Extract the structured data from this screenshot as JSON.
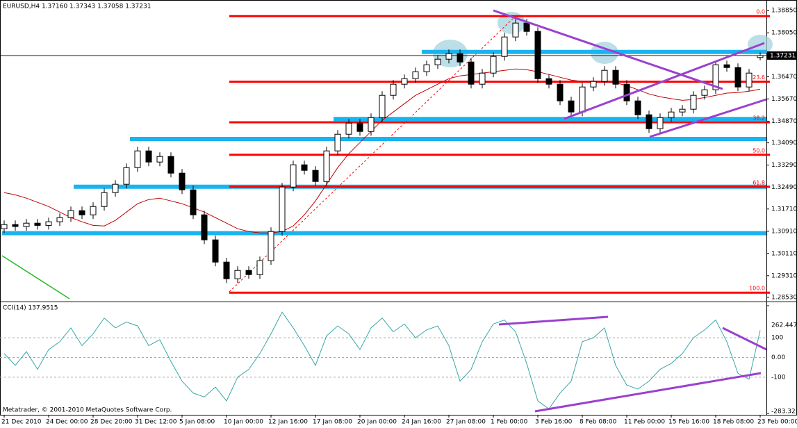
{
  "chart_data": [
    {
      "type": "candlestick",
      "title": "EURUSD,H4  1.37160 1.37343 1.37058 1.37231",
      "open": [
        1.31,
        1.3115,
        1.3108,
        1.312,
        1.3112,
        1.3125,
        1.314,
        1.3165,
        1.315,
        1.318,
        1.323,
        1.326,
        1.332,
        1.338,
        1.334,
        1.336,
        1.33,
        1.324,
        1.315,
        1.306,
        1.298,
        1.292,
        1.295,
        1.2935,
        1.2985,
        1.309,
        1.325,
        1.333,
        1.331,
        1.327,
        1.338,
        1.344,
        1.348,
        1.345,
        1.35,
        1.358,
        1.362,
        1.364,
        1.3665,
        1.369,
        1.371,
        1.373,
        1.37,
        1.362,
        1.366,
        1.372,
        1.379,
        1.384,
        1.381,
        1.364,
        1.362,
        1.356,
        1.352,
        1.361,
        1.363,
        1.367,
        1.362,
        1.356,
        1.351,
        1.346,
        1.35,
        1.352,
        1.353,
        1.358,
        1.36,
        1.369,
        1.368,
        1.361,
        1.3716
      ],
      "high": [
        1.313,
        1.313,
        1.3135,
        1.3135,
        1.314,
        1.3155,
        1.318,
        1.318,
        1.3195,
        1.3245,
        1.3275,
        1.3335,
        1.3395,
        1.3395,
        1.3375,
        1.3375,
        1.3315,
        1.3255,
        1.3165,
        1.3075,
        1.2995,
        1.2965,
        1.2965,
        1.3,
        1.3105,
        1.3265,
        1.3345,
        1.3345,
        1.3325,
        1.3395,
        1.3455,
        1.3495,
        1.3495,
        1.3515,
        1.3595,
        1.3635,
        1.3655,
        1.368,
        1.3705,
        1.3725,
        1.3745,
        1.3745,
        1.3715,
        1.3675,
        1.3735,
        1.3805,
        1.3855,
        1.3855,
        1.3825,
        1.3655,
        1.3635,
        1.3575,
        1.3625,
        1.3645,
        1.3685,
        1.3685,
        1.3635,
        1.3575,
        1.3525,
        1.3515,
        1.3535,
        1.3545,
        1.3595,
        1.3615,
        1.3705,
        1.3705,
        1.3695,
        1.3675,
        1.37343
      ],
      "low": [
        1.3085,
        1.3093,
        1.3093,
        1.3097,
        1.3097,
        1.311,
        1.3125,
        1.3135,
        1.3135,
        1.3165,
        1.3215,
        1.3245,
        1.3305,
        1.3325,
        1.3325,
        1.3285,
        1.3225,
        1.3135,
        1.3045,
        1.2965,
        1.2905,
        1.2905,
        1.292,
        1.292,
        1.297,
        1.3075,
        1.3235,
        1.3295,
        1.3255,
        1.3255,
        1.3365,
        1.3425,
        1.3435,
        1.3435,
        1.3485,
        1.3565,
        1.3605,
        1.3625,
        1.365,
        1.3675,
        1.3695,
        1.3685,
        1.3605,
        1.3605,
        1.3645,
        1.3705,
        1.3775,
        1.3795,
        1.3625,
        1.3605,
        1.3545,
        1.3505,
        1.3505,
        1.3595,
        1.3615,
        1.3605,
        1.3545,
        1.3495,
        1.3445,
        1.3445,
        1.3485,
        1.3505,
        1.3515,
        1.3565,
        1.3585,
        1.3665,
        1.3595,
        1.3595,
        1.37058
      ],
      "close": [
        1.3115,
        1.3108,
        1.312,
        1.3112,
        1.3125,
        1.314,
        1.3165,
        1.315,
        1.318,
        1.323,
        1.326,
        1.332,
        1.338,
        1.334,
        1.336,
        1.33,
        1.324,
        1.315,
        1.306,
        1.298,
        1.292,
        1.295,
        1.2935,
        1.2985,
        1.309,
        1.325,
        1.333,
        1.331,
        1.327,
        1.338,
        1.344,
        1.348,
        1.345,
        1.35,
        1.358,
        1.362,
        1.364,
        1.3665,
        1.369,
        1.371,
        1.373,
        1.37,
        1.362,
        1.366,
        1.372,
        1.379,
        1.384,
        1.381,
        1.364,
        1.362,
        1.356,
        1.352,
        1.361,
        1.363,
        1.367,
        1.362,
        1.356,
        1.351,
        1.346,
        1.35,
        1.352,
        1.353,
        1.358,
        1.36,
        1.369,
        1.368,
        1.361,
        1.366,
        1.37231
      ],
      "ma": {
        "color": "#c00000",
        "values": [
          1.323,
          1.3222,
          1.321,
          1.3195,
          1.318,
          1.316,
          1.314,
          1.3125,
          1.3112,
          1.311,
          1.313,
          1.316,
          1.319,
          1.3205,
          1.321,
          1.32,
          1.319,
          1.3175,
          1.316,
          1.314,
          1.312,
          1.31,
          1.309,
          1.3085,
          1.3085,
          1.309,
          1.311,
          1.315,
          1.32,
          1.326,
          1.332,
          1.337,
          1.341,
          1.345,
          1.349,
          1.352,
          1.355,
          1.358,
          1.36,
          1.362,
          1.364,
          1.365,
          1.3655,
          1.366,
          1.3665,
          1.367,
          1.3675,
          1.3672,
          1.3665,
          1.3655,
          1.3645,
          1.3635,
          1.363,
          1.3628,
          1.363,
          1.3625,
          1.3615,
          1.36,
          1.3585,
          1.3575,
          1.3568,
          1.3562,
          1.3565,
          1.3572,
          1.358,
          1.3588,
          1.359,
          1.3595,
          1.3602
        ]
      },
      "fib_color": "#ff0000",
      "fib_levels": [
        {
          "value": 1.3865,
          "label": "0.0"
        },
        {
          "value": 1.3629,
          "label": "23.6"
        },
        {
          "value": 1.3483,
          "label": "38.2"
        },
        {
          "value": 1.3366,
          "label": "50.0"
        },
        {
          "value": 1.3251,
          "label": "61.8"
        },
        {
          "value": 1.287,
          "label": "100.0"
        }
      ],
      "sr_color": "#19b4f0",
      "sr_levels": [
        1.3736,
        1.3495,
        1.3423,
        1.3251,
        1.3084
      ],
      "last_price": 1.37231,
      "ylim": [
        1.2843,
        1.3918
      ],
      "yticks": [
        {
          "value": 1.3885,
          "label": "1.38850"
        },
        {
          "value": 1.3805,
          "label": "1.38050"
        },
        {
          "value": 1.3647,
          "label": "1.36470"
        },
        {
          "value": 1.3567,
          "label": "1.35670"
        },
        {
          "value": 1.3487,
          "label": "1.34870"
        },
        {
          "value": 1.3409,
          "label": "1.34090"
        },
        {
          "value": 1.3329,
          "label": "1.33290"
        },
        {
          "value": 1.3249,
          "label": "1.32490"
        },
        {
          "value": 1.3171,
          "label": "1.31710"
        },
        {
          "value": 1.3091,
          "label": "1.30910"
        },
        {
          "value": 1.3011,
          "label": "1.30110"
        },
        {
          "value": 1.2931,
          "label": "1.29310"
        },
        {
          "value": 1.2853,
          "label": "1.28530"
        }
      ]
    },
    {
      "type": "line",
      "title": "CCI(14) 137.9515",
      "color": "#3aa6a6",
      "values": [
        20,
        -40,
        30,
        -60,
        40,
        80,
        150,
        60,
        120,
        200,
        150,
        180,
        160,
        60,
        90,
        -20,
        -120,
        -180,
        -200,
        -150,
        -220,
        -100,
        -60,
        20,
        120,
        230,
        150,
        60,
        -40,
        110,
        160,
        120,
        40,
        150,
        200,
        130,
        170,
        100,
        140,
        160,
        60,
        -120,
        -60,
        80,
        170,
        190,
        130,
        -30,
        -220,
        -260,
        -180,
        -120,
        80,
        100,
        150,
        -40,
        -140,
        -160,
        -120,
        -60,
        -30,
        20,
        100,
        140,
        190,
        80,
        -80,
        -110,
        137.9515
      ],
      "categories": [
        "21 Dec 2010",
        null,
        null,
        null,
        "24 Dec 00:00",
        null,
        null,
        null,
        "28 Dec 20:00",
        null,
        null,
        null,
        "31 Dec 12:00",
        null,
        null,
        null,
        "5 Jan 08:00",
        null,
        null,
        null,
        "10 Jan 00:00",
        null,
        null,
        null,
        "12 Jan 16:00",
        null,
        null,
        null,
        "17 Jan 08:00",
        null,
        null,
        null,
        "20 Jan 00:00",
        null,
        null,
        null,
        "24 Jan 16:00",
        null,
        null,
        null,
        "27 Jan 08:00",
        null,
        null,
        null,
        "1 Feb 00:00",
        null,
        null,
        null,
        "3 Feb 16:00",
        null,
        null,
        null,
        "8 Feb 08:00",
        null,
        null,
        null,
        "11 Feb 00:00",
        null,
        null,
        null,
        "15 Feb 16:00",
        null,
        null,
        null,
        "18 Feb 08:00",
        null,
        null,
        null,
        "23 Feb 00:00"
      ],
      "ylim": [
        -283.321,
        262.4477
      ],
      "yticks": [
        262.4477,
        100,
        {
          "value": 0,
          "label": "0.00"
        },
        -100,
        -283.321
      ]
    }
  ],
  "footer": "Metatrader, © 2001-2010 MetaQuotes Software Corp."
}
